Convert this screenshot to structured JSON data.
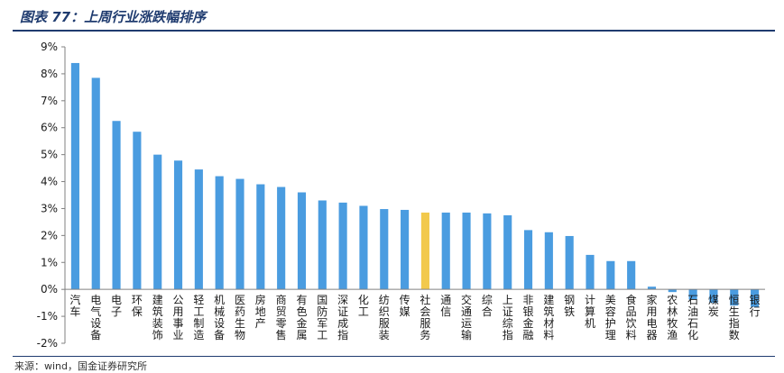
{
  "header": {
    "title": "图表 77：上周行业涨跌幅排序"
  },
  "footer": {
    "source": "来源：wind，国金证券研究所"
  },
  "colors": {
    "bar": "#4a9ce0",
    "highlight": "#f2c94c",
    "axis": "#808080"
  },
  "chart_data": {
    "type": "bar",
    "title": "",
    "xlabel": "",
    "ylabel": "",
    "ylim": [
      -2,
      9
    ],
    "yticks": [
      "-2%",
      "-1%",
      "0%",
      "1%",
      "2%",
      "3%",
      "4%",
      "5%",
      "6%",
      "7%",
      "8%",
      "9%"
    ],
    "highlight_index": 17,
    "categories": [
      "汽车",
      "电气设备",
      "电子",
      "环保",
      "建筑装饰",
      "公用事业",
      "轻工制造",
      "机械设备",
      "医药生物",
      "房地产",
      "商贸零售",
      "有色金属",
      "国防军工",
      "深证成指",
      "化工",
      "纺织服装",
      "传媒",
      "社会服务",
      "通信",
      "交通运输",
      "综合",
      "上证综指",
      "非银金融",
      "建筑材料",
      "钢铁",
      "计算机",
      "美容护理",
      "食品饮料",
      "家用电器",
      "农林牧渔",
      "石油石化",
      "煤炭",
      "恒生指数",
      "银行"
    ],
    "values": [
      8.4,
      7.85,
      6.25,
      5.85,
      5.0,
      4.78,
      4.45,
      4.2,
      4.1,
      3.9,
      3.8,
      3.6,
      3.3,
      3.22,
      3.1,
      2.98,
      2.95,
      2.85,
      2.85,
      2.85,
      2.82,
      2.75,
      2.2,
      2.12,
      1.98,
      1.28,
      1.05,
      1.05,
      0.1,
      -0.1,
      -0.38,
      -0.5,
      -0.6,
      -0.65
    ]
  }
}
